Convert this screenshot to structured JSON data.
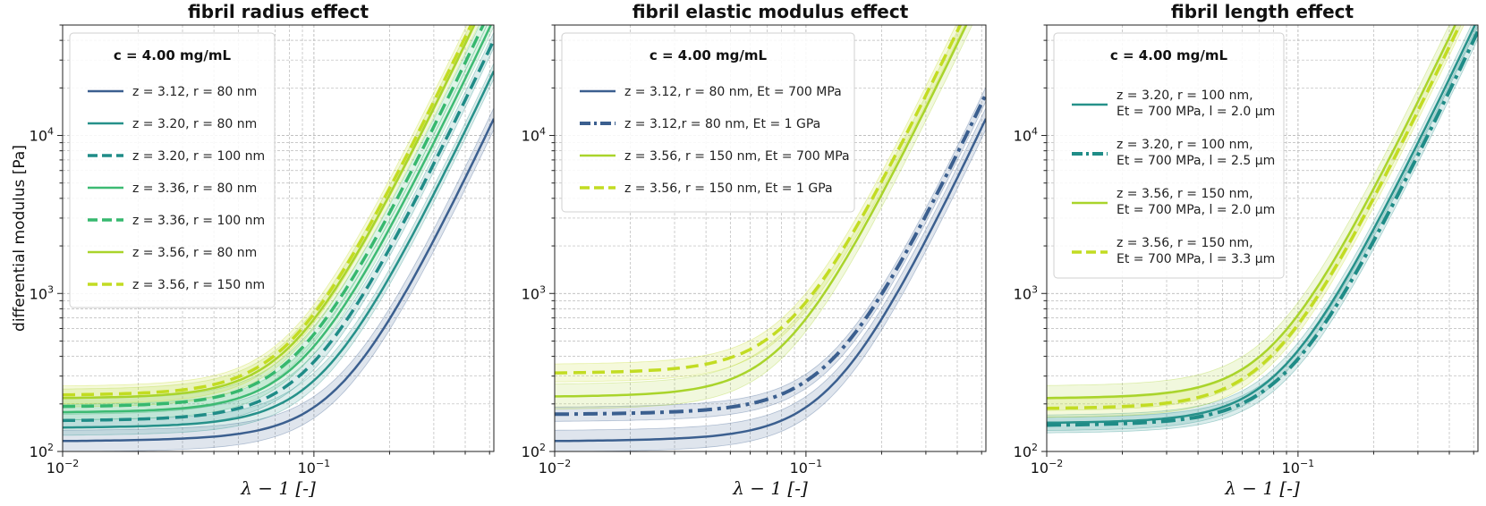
{
  "chart_data": [
    {
      "type": "line",
      "title": "fibril radius effect",
      "xlabel": "λ − 1 [-]",
      "ylabel": "differential modulus [Pa]",
      "xscale": "log",
      "yscale": "log",
      "xlim": [
        0.01,
        0.52
      ],
      "ylim": [
        100,
        50000
      ],
      "grid": true,
      "legend_title": "c = 4.00 mg/mL",
      "legend_position": "top-left",
      "x_ticks": [
        "10^-2",
        "10^-1"
      ],
      "y_ticks": [
        "10^2",
        "10^3",
        "10^4"
      ],
      "series": [
        {
          "name": "z = 3.12, r = 80 nm",
          "color": "#3b5f8f",
          "style": "solid",
          "width": 2.5,
          "y0": 115,
          "ysat": 7000,
          "band": 0.17
        },
        {
          "name": "z = 3.20, r = 80 nm",
          "color": "#26918a",
          "style": "solid",
          "width": 2.5,
          "y0": 140,
          "ysat": 14000,
          "band": 0.12
        },
        {
          "name": "z = 3.20, r = 100 nm",
          "color": "#1f8c87",
          "style": "dashed",
          "width": 3.5,
          "y0": 155,
          "ysat": 22000,
          "band": 0.12
        },
        {
          "name": "z = 3.36, r = 80 nm",
          "color": "#3dba73",
          "style": "solid",
          "width": 2.5,
          "y0": 175,
          "ysat": 30000,
          "band": 0.12
        },
        {
          "name": "z = 3.36, r = 100 nm",
          "color": "#36b86e",
          "style": "dashed",
          "width": 3.5,
          "y0": 190,
          "ysat": 38000,
          "band": 0.12
        },
        {
          "name": "z = 3.56, r = 80 nm",
          "color": "#a9d42b",
          "style": "solid",
          "width": 2.5,
          "y0": 215,
          "ysat": 50000,
          "band": 0.14
        },
        {
          "name": "z = 3.56,  r = 150 nm",
          "color": "#c2dc22",
          "style": "dashed",
          "width": 3.5,
          "y0": 225,
          "ysat": 55000,
          "band": 0.14
        }
      ]
    },
    {
      "type": "line",
      "title": "fibril elastic modulus effect",
      "xlabel": "λ − 1 [-]",
      "ylabel": "",
      "xscale": "log",
      "yscale": "log",
      "xlim": [
        0.01,
        0.52
      ],
      "ylim": [
        100,
        50000
      ],
      "grid": true,
      "legend_title": "c = 4.00 mg/mL",
      "legend_position": "top-left",
      "x_ticks": [
        "10^-2",
        "10^-1"
      ],
      "y_ticks": [
        "10^2",
        "10^3",
        "10^4"
      ],
      "series": [
        {
          "name": "z = 3.12, r = 80 nm, Et = 700 MPa",
          "color": "#3b5f8f",
          "style": "solid",
          "width": 2.5,
          "y0": 115,
          "ysat": 7000,
          "band": 0.17
        },
        {
          "name": "z = 3.12,r = 80 nm, Et = 1 GPa",
          "color": "#3b5f8f",
          "style": "dashdot",
          "width": 4,
          "y0": 170,
          "ysat": 10000,
          "band": 0.11
        },
        {
          "name": "z = 3.56, r = 150 nm, Et = 700 MPa",
          "color": "#a9d42b",
          "style": "solid",
          "width": 2.5,
          "y0": 220,
          "ysat": 50000,
          "band": 0.2
        },
        {
          "name": "z = 3.56, r = 150 nm, Et = 1 GPa",
          "color": "#c2dc22",
          "style": "dashed",
          "width": 3.5,
          "y0": 310,
          "ysat": 60000,
          "band": 0.14
        }
      ]
    },
    {
      "type": "line",
      "title": "fibril length effect",
      "xlabel": "λ − 1 [-]",
      "ylabel": "",
      "xscale": "log",
      "yscale": "log",
      "xlim": [
        0.01,
        0.52
      ],
      "ylim": [
        100,
        50000
      ],
      "grid": true,
      "legend_title": "c = 4.00 mg/mL",
      "legend_position": "top-left",
      "x_ticks": [
        "10^-2",
        "10^-1"
      ],
      "y_ticks": [
        "10^2",
        "10^3",
        "10^4"
      ],
      "series": [
        {
          "name": "z = 3.20, r = 100 nm,|Et = 700 MPa, l = 2.0 μm",
          "color": "#26918a",
          "style": "solid",
          "width": 2.5,
          "y0": 150,
          "ysat": 30000,
          "band": 0.12
        },
        {
          "name": "z = 3.20, r = 100 nm,|Et = 700 MPa, l = 2.5 μm",
          "color": "#1f8c87",
          "style": "dashdot",
          "width": 4,
          "y0": 145,
          "ysat": 25000,
          "band": 0.12
        },
        {
          "name": "z = 3.56, r = 150 nm,|Et = 700 MPa, l = 2.0 μm",
          "color": "#a9d42b",
          "style": "solid",
          "width": 2.5,
          "y0": 215,
          "ysat": 55000,
          "band": 0.2
        },
        {
          "name": "z = 3.56,  r = 150 nm,|Et = 700 MPa, l = 3.3 μm",
          "color": "#c2dc22",
          "style": "dashed",
          "width": 3.5,
          "y0": 185,
          "ysat": 48000,
          "band": 0.14
        }
      ]
    }
  ]
}
